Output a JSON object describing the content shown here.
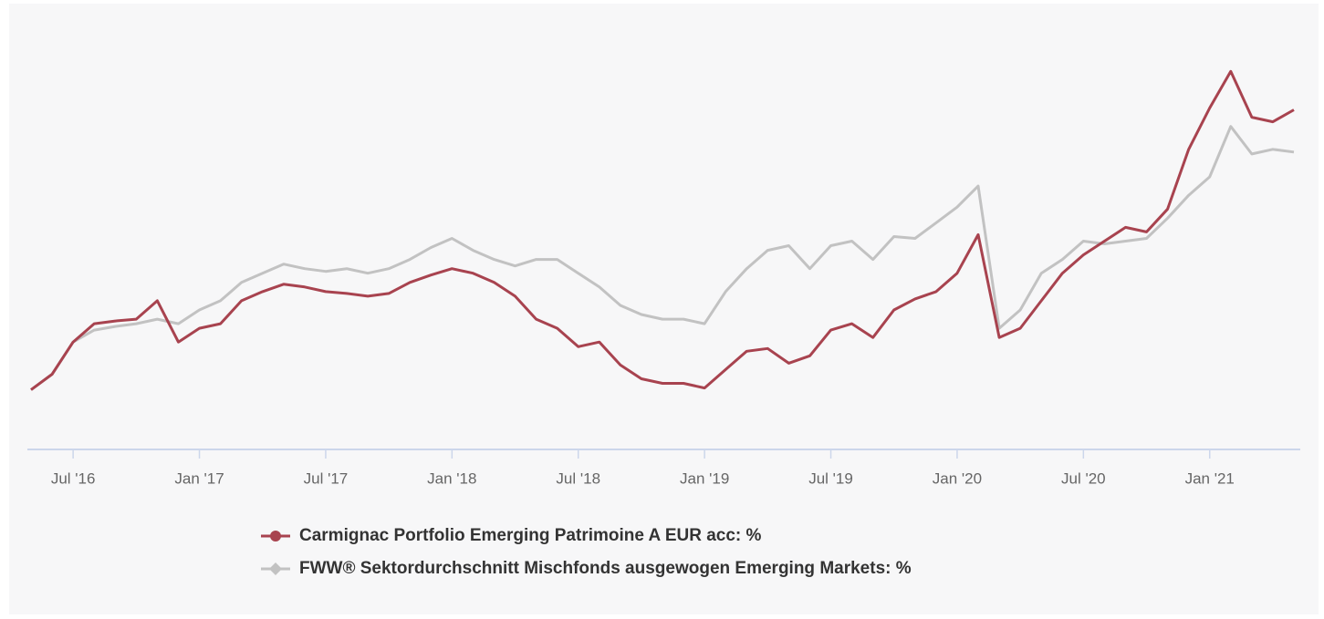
{
  "chart_data": {
    "type": "line",
    "x": [
      "2016-05",
      "2016-06",
      "2016-07",
      "2016-08",
      "2016-09",
      "2016-10",
      "2016-11",
      "2016-12",
      "2017-01",
      "2017-02",
      "2017-03",
      "2017-04",
      "2017-05",
      "2017-06",
      "2017-07",
      "2017-08",
      "2017-09",
      "2017-10",
      "2017-11",
      "2017-12",
      "2018-01",
      "2018-02",
      "2018-03",
      "2018-04",
      "2018-05",
      "2018-06",
      "2018-07",
      "2018-08",
      "2018-09",
      "2018-10",
      "2018-11",
      "2018-12",
      "2019-01",
      "2019-02",
      "2019-03",
      "2019-04",
      "2019-05",
      "2019-06",
      "2019-07",
      "2019-08",
      "2019-09",
      "2019-10",
      "2019-11",
      "2019-12",
      "2020-01",
      "2020-02",
      "2020-03",
      "2020-04",
      "2020-05",
      "2020-06",
      "2020-07",
      "2020-08",
      "2020-09",
      "2020-10",
      "2020-11",
      "2020-12",
      "2021-01",
      "2021-02",
      "2021-03",
      "2021-04",
      "2021-05"
    ],
    "series": [
      {
        "name": "Carmignac Portfolio Emerging Patrimoine A EUR acc: %",
        "color": "#a8434f",
        "values": [
          0,
          3.4,
          10.4,
          14.4,
          15,
          15.4,
          19.4,
          10.4,
          13.4,
          14.4,
          19.4,
          21.4,
          23,
          22.4,
          21.4,
          21,
          20.4,
          21,
          23.4,
          25,
          26.4,
          25.4,
          23.4,
          20.4,
          15.4,
          13.4,
          9.4,
          10.4,
          5.4,
          2.4,
          1.4,
          1.4,
          0.4,
          4.4,
          8.4,
          9,
          5.8,
          7.4,
          13,
          14.4,
          11.4,
          17.4,
          19.8,
          21.4,
          25.4,
          33.8,
          11.4,
          13.4,
          19.4,
          25.4,
          29.4,
          32.4,
          35.4,
          34.4,
          39.4,
          52.4,
          61.4,
          69.4,
          59.4,
          58.4,
          61
        ]
      },
      {
        "name": "FWW® Sektordurchschnitt Mischfonds ausgewogen Emerging Markets: %",
        "color": "#c2c2c2",
        "values": [
          0,
          3.4,
          10.4,
          13,
          13.8,
          14.4,
          15.4,
          14.4,
          17.4,
          19.4,
          23.4,
          25.4,
          27.4,
          26.4,
          25.8,
          26.4,
          25.4,
          26.4,
          28.4,
          31,
          33,
          30.4,
          28.4,
          27,
          28.4,
          28.4,
          25.4,
          22.4,
          18.4,
          16.4,
          15.4,
          15.4,
          14.4,
          21.4,
          26.4,
          30.4,
          31.4,
          26.4,
          31.4,
          32.4,
          28.4,
          33.4,
          33,
          36.4,
          39.8,
          44.4,
          13.4,
          17.4,
          25.4,
          28.4,
          32.4,
          31.8,
          32.4,
          33,
          37.4,
          42.4,
          46.4,
          57.4,
          51.4,
          52.4,
          51.8
        ]
      }
    ],
    "xlim": [
      "2016-05",
      "2021-05"
    ],
    "xticks": [
      {
        "value": "2016-07",
        "label": "Jul '16"
      },
      {
        "value": "2017-01",
        "label": "Jan '17"
      },
      {
        "value": "2017-07",
        "label": "Jul '17"
      },
      {
        "value": "2018-01",
        "label": "Jan '18"
      },
      {
        "value": "2018-07",
        "label": "Jul '18"
      },
      {
        "value": "2019-01",
        "label": "Jan '19"
      },
      {
        "value": "2019-07",
        "label": "Jul '19"
      },
      {
        "value": "2020-01",
        "label": "Jan '20"
      },
      {
        "value": "2020-07",
        "label": "Jul '20"
      },
      {
        "value": "2021-01",
        "label": "Jan '21"
      }
    ],
    "ylim": [
      -13,
      77
    ],
    "legend": "bottom"
  }
}
